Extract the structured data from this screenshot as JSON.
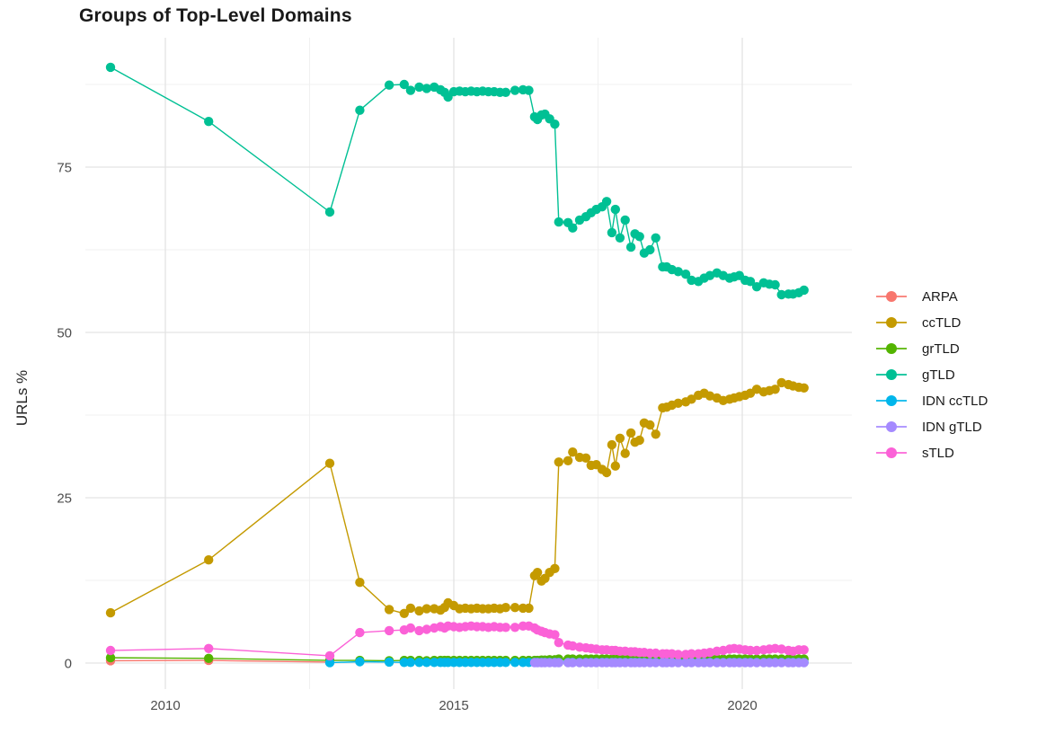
{
  "chart_data": {
    "type": "line",
    "title": "Groups of Top-Level Domains",
    "ylabel": "URLs %",
    "xlabel": "",
    "x_ticks": [
      2010,
      2015,
      2020
    ],
    "x_minor": [
      2012.5,
      2017.5
    ],
    "y_ticks": [
      0,
      25,
      50,
      75
    ],
    "y_minor": [
      12.5,
      37.5,
      62.5,
      87.5
    ],
    "x_range": [
      2008.6,
      2021.5
    ],
    "y_range": [
      0,
      94
    ],
    "grid": true,
    "legend_position": "right",
    "palette": {
      "major_grid": "#e3e3e3",
      "minor_grid": "#f0f0f0",
      "tick_label": "#4d4d4d",
      "axis_title": "#262626",
      "background": "#ffffff"
    },
    "series": [
      {
        "name": "ARPA",
        "color": "#F8766D",
        "x": [
          2009.05,
          2010.75,
          2012.85
        ],
        "y": [
          0.35,
          0.4,
          0.15
        ]
      },
      {
        "name": "ccTLD",
        "color": "#C49A00",
        "x": [
          2009.05,
          2010.75,
          2012.85,
          2013.37,
          2013.88,
          2014.14,
          2014.25,
          2014.4,
          2014.53,
          2014.66,
          2014.77,
          2014.84,
          2014.9,
          2015.0,
          2015.1,
          2015.2,
          2015.3,
          2015.4,
          2015.5,
          2015.6,
          2015.7,
          2015.8,
          2015.9,
          2016.06,
          2016.2,
          2016.3,
          2016.4,
          2016.45,
          2016.52,
          2016.58,
          2016.66,
          2016.75,
          2016.82,
          2016.98,
          2017.06,
          2017.18,
          2017.29,
          2017.38,
          2017.47,
          2017.57,
          2017.65,
          2017.74,
          2017.8,
          2017.88,
          2017.97,
          2018.07,
          2018.14,
          2018.22,
          2018.3,
          2018.4,
          2018.5,
          2018.62,
          2018.69,
          2018.78,
          2018.89,
          2019.02,
          2019.12,
          2019.24,
          2019.34,
          2019.44,
          2019.56,
          2019.67,
          2019.78,
          2019.86,
          2019.95,
          2020.05,
          2020.14,
          2020.25,
          2020.37,
          2020.47,
          2020.57,
          2020.68,
          2020.8,
          2020.88,
          2020.98,
          2021.07
        ],
        "y": [
          7.6,
          15.6,
          30.2,
          12.2,
          8.1,
          7.5,
          8.3,
          7.9,
          8.2,
          8.2,
          8.0,
          8.4,
          9.1,
          8.7,
          8.2,
          8.3,
          8.2,
          8.3,
          8.2,
          8.2,
          8.3,
          8.2,
          8.4,
          8.4,
          8.3,
          8.3,
          13.2,
          13.7,
          12.4,
          12.8,
          13.7,
          14.3,
          30.4,
          30.6,
          31.9,
          31.1,
          31.0,
          29.9,
          30.0,
          29.3,
          28.8,
          33.0,
          29.8,
          34.0,
          31.7,
          34.8,
          33.4,
          33.7,
          36.3,
          36.0,
          34.6,
          38.6,
          38.7,
          39.0,
          39.3,
          39.5,
          39.9,
          40.5,
          40.8,
          40.4,
          40.1,
          39.7,
          39.9,
          40.1,
          40.3,
          40.5,
          40.8,
          41.4,
          41.0,
          41.2,
          41.4,
          42.4,
          42.1,
          41.9,
          41.7,
          41.6
        ]
      },
      {
        "name": "grTLD",
        "color": "#53B400",
        "x": [
          2009.05,
          2010.75,
          2012.85,
          2013.37,
          2013.88,
          2014.14,
          2014.25,
          2014.4,
          2014.53,
          2014.66,
          2014.77,
          2014.84,
          2014.9,
          2015.0,
          2015.1,
          2015.2,
          2015.3,
          2015.4,
          2015.5,
          2015.6,
          2015.7,
          2015.8,
          2015.9,
          2016.06,
          2016.2,
          2016.3,
          2016.4,
          2016.45,
          2016.52,
          2016.58,
          2016.66,
          2016.75,
          2016.82,
          2016.98,
          2017.06,
          2017.18,
          2017.29,
          2017.38,
          2017.47,
          2017.57,
          2017.65,
          2017.74,
          2017.8,
          2017.88,
          2017.97,
          2018.07,
          2018.14,
          2018.22,
          2018.3,
          2018.4,
          2018.5,
          2018.62,
          2018.69,
          2018.78,
          2018.89,
          2019.02,
          2019.12,
          2019.24,
          2019.34,
          2019.44,
          2019.56,
          2019.67,
          2019.78,
          2019.86,
          2019.95,
          2020.05,
          2020.14,
          2020.25,
          2020.37,
          2020.47,
          2020.57,
          2020.68,
          2020.8,
          2020.88,
          2020.98,
          2021.07
        ],
        "y": [
          0.8,
          0.7,
          0.4,
          0.4,
          0.35,
          0.4,
          0.4,
          0.4,
          0.35,
          0.4,
          0.4,
          0.4,
          0.4,
          0.4,
          0.4,
          0.4,
          0.4,
          0.4,
          0.4,
          0.4,
          0.4,
          0.4,
          0.4,
          0.4,
          0.4,
          0.4,
          0.4,
          0.4,
          0.45,
          0.45,
          0.5,
          0.5,
          0.6,
          0.6,
          0.6,
          0.6,
          0.6,
          0.6,
          0.6,
          0.6,
          0.6,
          0.6,
          0.6,
          0.6,
          0.6,
          0.6,
          0.6,
          0.6,
          0.6,
          0.6,
          0.6,
          0.6,
          0.6,
          0.6,
          0.6,
          0.6,
          0.6,
          0.6,
          0.65,
          0.65,
          0.65,
          0.6,
          0.6,
          0.6,
          0.6,
          0.6,
          0.6,
          0.6,
          0.6,
          0.6,
          0.6,
          0.6,
          0.6,
          0.6,
          0.6,
          0.6
        ]
      },
      {
        "name": "gTLD",
        "color": "#00C094",
        "x": [
          2009.05,
          2010.75,
          2012.85,
          2013.37,
          2013.88,
          2014.14,
          2014.25,
          2014.4,
          2014.53,
          2014.66,
          2014.77,
          2014.84,
          2014.9,
          2015.0,
          2015.1,
          2015.2,
          2015.3,
          2015.4,
          2015.5,
          2015.6,
          2015.7,
          2015.8,
          2015.9,
          2016.06,
          2016.2,
          2016.3,
          2016.4,
          2016.45,
          2016.52,
          2016.58,
          2016.66,
          2016.75,
          2016.82,
          2016.98,
          2017.06,
          2017.18,
          2017.29,
          2017.38,
          2017.47,
          2017.57,
          2017.65,
          2017.74,
          2017.8,
          2017.88,
          2017.97,
          2018.07,
          2018.14,
          2018.22,
          2018.3,
          2018.4,
          2018.5,
          2018.62,
          2018.69,
          2018.78,
          2018.89,
          2019.02,
          2019.12,
          2019.24,
          2019.34,
          2019.44,
          2019.56,
          2019.67,
          2019.78,
          2019.86,
          2019.95,
          2020.05,
          2020.14,
          2020.25,
          2020.37,
          2020.47,
          2020.57,
          2020.68,
          2020.8,
          2020.88,
          2020.98,
          2021.07
        ],
        "y": [
          90.1,
          81.9,
          68.2,
          83.6,
          87.4,
          87.5,
          86.6,
          87.1,
          86.9,
          87.1,
          86.7,
          86.3,
          85.6,
          86.4,
          86.5,
          86.4,
          86.5,
          86.4,
          86.5,
          86.4,
          86.4,
          86.3,
          86.3,
          86.6,
          86.7,
          86.6,
          82.6,
          82.2,
          82.9,
          83.0,
          82.3,
          81.5,
          66.7,
          66.6,
          65.8,
          67.0,
          67.5,
          68.1,
          68.6,
          69.0,
          69.8,
          65.1,
          68.6,
          64.3,
          67.0,
          62.9,
          64.9,
          64.5,
          62.0,
          62.5,
          64.3,
          59.9,
          59.9,
          59.5,
          59.2,
          58.8,
          57.9,
          57.7,
          58.2,
          58.6,
          59.0,
          58.6,
          58.2,
          58.4,
          58.6,
          57.9,
          57.7,
          56.9,
          57.5,
          57.3,
          57.2,
          55.7,
          55.8,
          55.8,
          56.0,
          56.4
        ]
      },
      {
        "name": "IDN ccTLD",
        "color": "#00B6EB",
        "x": [
          2012.85,
          2013.37,
          2013.88,
          2014.14,
          2014.25,
          2014.4,
          2014.53,
          2014.66,
          2014.77,
          2014.84,
          2014.9,
          2015.0,
          2015.1,
          2015.2,
          2015.3,
          2015.4,
          2015.5,
          2015.6,
          2015.7,
          2015.8,
          2015.9,
          2016.06,
          2016.2,
          2016.3,
          2016.4,
          2016.45,
          2016.52,
          2016.58,
          2016.66,
          2016.75,
          2016.82,
          2016.98,
          2017.06,
          2017.18,
          2017.29,
          2017.38,
          2017.47,
          2017.57,
          2017.65,
          2017.74,
          2017.8,
          2017.88,
          2017.97,
          2018.07,
          2018.14,
          2018.22,
          2018.3,
          2018.4,
          2018.5,
          2018.62,
          2018.69,
          2018.78,
          2018.89,
          2019.02,
          2019.12,
          2019.24,
          2019.34,
          2019.44,
          2019.56,
          2019.67,
          2019.78,
          2019.86,
          2019.95,
          2020.05,
          2020.14,
          2020.25,
          2020.37,
          2020.47,
          2020.57,
          2020.68,
          2020.8,
          2020.88,
          2020.98,
          2021.07
        ],
        "y": [
          0.05,
          0.2,
          0.15,
          0.1,
          0.1,
          0.1,
          0.1,
          0.1,
          0.1,
          0.1,
          0.1,
          0.1,
          0.1,
          0.1,
          0.1,
          0.1,
          0.1,
          0.1,
          0.1,
          0.1,
          0.1,
          0.1,
          0.1,
          0.1,
          0.1,
          0.1,
          0.1,
          0.1,
          0.1,
          0.1,
          0.1,
          0.1,
          0.1,
          0.1,
          0.1,
          0.1,
          0.1,
          0.1,
          0.1,
          0.1,
          0.1,
          0.1,
          0.1,
          0.1,
          0.1,
          0.1,
          0.1,
          0.1,
          0.1,
          0.1,
          0.1,
          0.1,
          0.1,
          0.1,
          0.1,
          0.1,
          0.1,
          0.1,
          0.1,
          0.1,
          0.1,
          0.1,
          0.1,
          0.1,
          0.1,
          0.1,
          0.1,
          0.1,
          0.1,
          0.1,
          0.1,
          0.1,
          0.1,
          0.1
        ]
      },
      {
        "name": "IDN gTLD",
        "color": "#A58AFF",
        "x": [
          2016.4,
          2016.45,
          2016.52,
          2016.58,
          2016.66,
          2016.75,
          2016.82,
          2016.98,
          2017.06,
          2017.18,
          2017.29,
          2017.38,
          2017.47,
          2017.57,
          2017.65,
          2017.74,
          2017.8,
          2017.88,
          2017.97,
          2018.07,
          2018.14,
          2018.22,
          2018.3,
          2018.4,
          2018.5,
          2018.62,
          2018.69,
          2018.78,
          2018.89,
          2019.02,
          2019.12,
          2019.24,
          2019.34,
          2019.44,
          2019.56,
          2019.67,
          2019.78,
          2019.86,
          2019.95,
          2020.05,
          2020.14,
          2020.25,
          2020.37,
          2020.47,
          2020.57,
          2020.68,
          2020.8,
          2020.88,
          2020.98,
          2021.07
        ],
        "y": [
          0.05,
          0.05,
          0.05,
          0.05,
          0.05,
          0.05,
          0.05,
          0.05,
          0.05,
          0.05,
          0.05,
          0.05,
          0.05,
          0.05,
          0.05,
          0.05,
          0.05,
          0.05,
          0.05,
          0.05,
          0.05,
          0.05,
          0.05,
          0.05,
          0.05,
          0.05,
          0.05,
          0.05,
          0.05,
          0.05,
          0.05,
          0.05,
          0.05,
          0.05,
          0.05,
          0.05,
          0.05,
          0.05,
          0.05,
          0.05,
          0.05,
          0.05,
          0.05,
          0.05,
          0.05,
          0.05,
          0.05,
          0.05,
          0.05,
          0.05
        ]
      },
      {
        "name": "sTLD",
        "color": "#FB61D7",
        "x": [
          2009.05,
          2010.75,
          2012.85,
          2013.37,
          2013.88,
          2014.14,
          2014.25,
          2014.4,
          2014.53,
          2014.66,
          2014.77,
          2014.84,
          2014.9,
          2015.0,
          2015.1,
          2015.2,
          2015.3,
          2015.4,
          2015.5,
          2015.6,
          2015.7,
          2015.8,
          2015.9,
          2016.06,
          2016.2,
          2016.3,
          2016.4,
          2016.45,
          2016.52,
          2016.58,
          2016.66,
          2016.75,
          2016.82,
          2016.98,
          2017.06,
          2017.18,
          2017.29,
          2017.38,
          2017.47,
          2017.57,
          2017.65,
          2017.74,
          2017.8,
          2017.88,
          2017.97,
          2018.07,
          2018.14,
          2018.22,
          2018.3,
          2018.4,
          2018.5,
          2018.62,
          2018.69,
          2018.78,
          2018.89,
          2019.02,
          2019.12,
          2019.24,
          2019.34,
          2019.44,
          2019.56,
          2019.67,
          2019.78,
          2019.86,
          2019.95,
          2020.05,
          2020.14,
          2020.25,
          2020.37,
          2020.47,
          2020.57,
          2020.68,
          2020.8,
          2020.88,
          2020.98,
          2021.07
        ],
        "y": [
          1.9,
          2.2,
          1.1,
          4.6,
          4.9,
          5.0,
          5.3,
          4.9,
          5.1,
          5.3,
          5.5,
          5.3,
          5.6,
          5.5,
          5.4,
          5.5,
          5.6,
          5.5,
          5.5,
          5.4,
          5.5,
          5.4,
          5.4,
          5.4,
          5.6,
          5.6,
          5.3,
          5.0,
          4.8,
          4.6,
          4.4,
          4.3,
          3.1,
          2.7,
          2.6,
          2.4,
          2.3,
          2.2,
          2.1,
          2.0,
          2.0,
          1.9,
          1.9,
          1.8,
          1.8,
          1.7,
          1.7,
          1.6,
          1.6,
          1.5,
          1.5,
          1.4,
          1.4,
          1.4,
          1.3,
          1.3,
          1.4,
          1.4,
          1.5,
          1.6,
          1.8,
          1.9,
          2.1,
          2.2,
          2.1,
          2.0,
          1.9,
          1.9,
          2.0,
          2.1,
          2.2,
          2.1,
          1.9,
          1.8,
          2.0,
          2.0
        ]
      }
    ]
  }
}
